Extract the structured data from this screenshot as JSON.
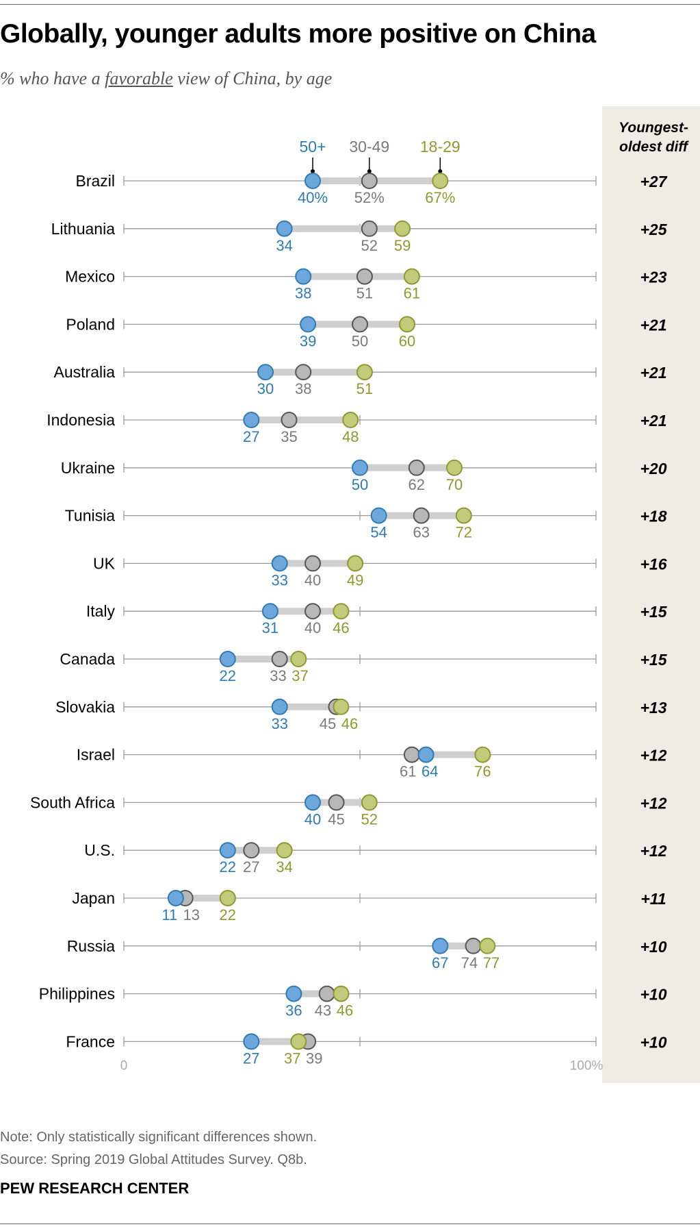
{
  "header": {
    "title": "Globally, younger adults more positive on China",
    "subtitle_pre": "% who have a ",
    "subtitle_underlined": "favorable",
    "subtitle_post": " view of China, by age"
  },
  "footer": {
    "note": "Note: Only statistically significant differences shown.",
    "source": "Source: Spring 2019 Global Attitudes Survey. Q8b.",
    "org": "PEW RESEARCH CENTER"
  },
  "chart_data": {
    "type": "dot",
    "diff_header_line1": "Youngest-",
    "diff_header_line2": "oldest diff",
    "axis_min_label": "0",
    "axis_max_label": "100%",
    "xlim": [
      0,
      100
    ],
    "gridlines": [
      0,
      50,
      100
    ],
    "series": [
      {
        "name": "50+",
        "color": "#2e7bb5",
        "fill": "#6ea7dc",
        "key": "older"
      },
      {
        "name": "30-49",
        "color": "#7a7a7a",
        "fill": "#b7b7b7",
        "key": "middle"
      },
      {
        "name": "18-29",
        "color": "#8c9a2e",
        "fill": "#c2ca7c",
        "key": "young"
      }
    ],
    "rows": [
      {
        "country": "Brazil",
        "older": 40,
        "middle": 52,
        "young": 67,
        "diff": "+27",
        "labels": [
          "40%",
          "52%",
          "67%"
        ]
      },
      {
        "country": "Lithuania",
        "older": 34,
        "middle": 52,
        "young": 59,
        "diff": "+25"
      },
      {
        "country": "Mexico",
        "older": 38,
        "middle": 51,
        "young": 61,
        "diff": "+23"
      },
      {
        "country": "Poland",
        "older": 39,
        "middle": 50,
        "young": 60,
        "diff": "+21"
      },
      {
        "country": "Australia",
        "older": 30,
        "middle": 38,
        "young": 51,
        "diff": "+21"
      },
      {
        "country": "Indonesia",
        "older": 27,
        "middle": 35,
        "young": 48,
        "diff": "+21"
      },
      {
        "country": "Ukraine",
        "older": 50,
        "middle": 62,
        "young": 70,
        "diff": "+20"
      },
      {
        "country": "Tunisia",
        "older": 54,
        "middle": 63,
        "young": 72,
        "diff": "+18"
      },
      {
        "country": "UK",
        "older": 33,
        "middle": 40,
        "young": 49,
        "diff": "+16"
      },
      {
        "country": "Italy",
        "older": 31,
        "middle": 40,
        "young": 46,
        "diff": "+15"
      },
      {
        "country": "Canada",
        "older": 22,
        "middle": 33,
        "young": 37,
        "diff": "+15"
      },
      {
        "country": "Slovakia",
        "older": 33,
        "middle": 45,
        "young": 46,
        "diff": "+13"
      },
      {
        "country": "Israel",
        "older": 64,
        "middle": 61,
        "young": 76,
        "diff": "+12"
      },
      {
        "country": "South Africa",
        "older": 40,
        "middle": 45,
        "young": 52,
        "diff": "+12"
      },
      {
        "country": "U.S.",
        "older": 22,
        "middle": 27,
        "young": 34,
        "diff": "+12"
      },
      {
        "country": "Japan",
        "older": 11,
        "middle": 13,
        "young": 22,
        "diff": "+11"
      },
      {
        "country": "Russia",
        "older": 67,
        "middle": 74,
        "young": 77,
        "diff": "+10"
      },
      {
        "country": "Philippines",
        "older": 36,
        "middle": 43,
        "young": 46,
        "diff": "+10"
      },
      {
        "country": "France",
        "older": 27,
        "middle": 39,
        "young": 37,
        "diff": "+10"
      }
    ]
  }
}
